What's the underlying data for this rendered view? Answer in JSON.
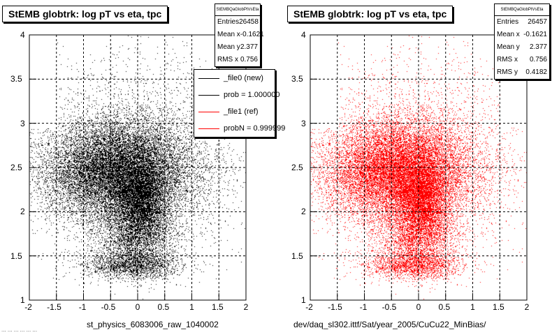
{
  "footer_text": "... ... ... ... ... ...",
  "colors": {
    "black": "#000000",
    "red": "#ff0000",
    "frame": "#000000"
  },
  "chart_data": [
    {
      "type": "scatter",
      "title": "StEMB globtrk: log pT vs eta, tpc",
      "xlabel": "st_physics_6083006_raw_1040002",
      "ylabel": "",
      "xlim": [
        -2,
        2
      ],
      "ylim": [
        1,
        4
      ],
      "x_ticks": [
        "-2",
        "-1.5",
        "-1",
        "-0.5",
        "0",
        "0.5",
        "1",
        "1.5",
        "2"
      ],
      "y_ticks": [
        "1",
        "1.5",
        "2",
        "2.5",
        "3",
        "3.5",
        "4"
      ],
      "grid": true,
      "marker_color": "#000000",
      "stats": {
        "name": "StEMBQaGlobPtVsEta",
        "rows": [
          {
            "label": "Entries",
            "value": "26458"
          },
          {
            "label": "Mean x",
            "value": "-0.1621"
          },
          {
            "label": "Mean y",
            "value": "2.377"
          },
          {
            "label": "RMS x",
            "value": "0.756"
          }
        ]
      },
      "legend": {
        "placement": "top-right",
        "entries": [
          {
            "label": "_file0 (new)",
            "color": "#000000"
          },
          {
            "label": "prob = 1.000000",
            "color": "#000000"
          },
          {
            "label": "_file1 (ref)",
            "color": "#ff0000"
          },
          {
            "label": "probN = 0.999999",
            "color": "#ff0000"
          }
        ]
      },
      "density_clusters": [
        {
          "x": -0.35,
          "y": 2.45,
          "sx": 0.65,
          "sy": 0.28,
          "weight": 0.55
        },
        {
          "x": 0.05,
          "y": 2.15,
          "sx": 0.22,
          "sy": 0.22,
          "weight": 0.15
        },
        {
          "x": 0.0,
          "y": 1.75,
          "sx": 0.35,
          "sy": 0.2,
          "weight": 0.1
        },
        {
          "x": -0.1,
          "y": 1.4,
          "sx": 0.45,
          "sy": 0.08,
          "weight": 0.07
        },
        {
          "x": 0.0,
          "y": 2.6,
          "sx": 1.05,
          "sy": 0.55,
          "weight": 0.13
        }
      ],
      "n_points": 26458
    },
    {
      "type": "scatter",
      "title": "StEMB globtrk: log pT vs eta, tpc",
      "xlabel": "dev/daq_sl302.ittf/Sat/year_2005/CuCu22_MinBias/",
      "ylabel": "",
      "xlim": [
        -2,
        2
      ],
      "ylim": [
        1,
        4
      ],
      "x_ticks": [
        "-2",
        "-1.5",
        "-1",
        "-0.5",
        "0",
        "0.5",
        "1",
        "1.5",
        "2"
      ],
      "y_ticks": [
        "1",
        "1.5",
        "2",
        "2.5",
        "3",
        "3.5",
        "4"
      ],
      "grid": true,
      "marker_color": "#ff0000",
      "stats": {
        "name": "StEMBQaGlobPtVsEta",
        "rows": [
          {
            "label": "Entries",
            "value": "26457"
          },
          {
            "label": "Mean x",
            "value": "-0.1621"
          },
          {
            "label": "Mean y",
            "value": "2.377"
          },
          {
            "label": "RMS x",
            "value": "0.756"
          },
          {
            "label": "RMS y",
            "value": "0.4182"
          }
        ]
      },
      "density_clusters": [
        {
          "x": -0.35,
          "y": 2.45,
          "sx": 0.65,
          "sy": 0.28,
          "weight": 0.55
        },
        {
          "x": 0.05,
          "y": 2.15,
          "sx": 0.22,
          "sy": 0.22,
          "weight": 0.15
        },
        {
          "x": 0.0,
          "y": 1.75,
          "sx": 0.35,
          "sy": 0.2,
          "weight": 0.1
        },
        {
          "x": -0.1,
          "y": 1.4,
          "sx": 0.45,
          "sy": 0.08,
          "weight": 0.07
        },
        {
          "x": 0.0,
          "y": 2.6,
          "sx": 1.05,
          "sy": 0.55,
          "weight": 0.13
        }
      ],
      "n_points": 26457
    }
  ]
}
